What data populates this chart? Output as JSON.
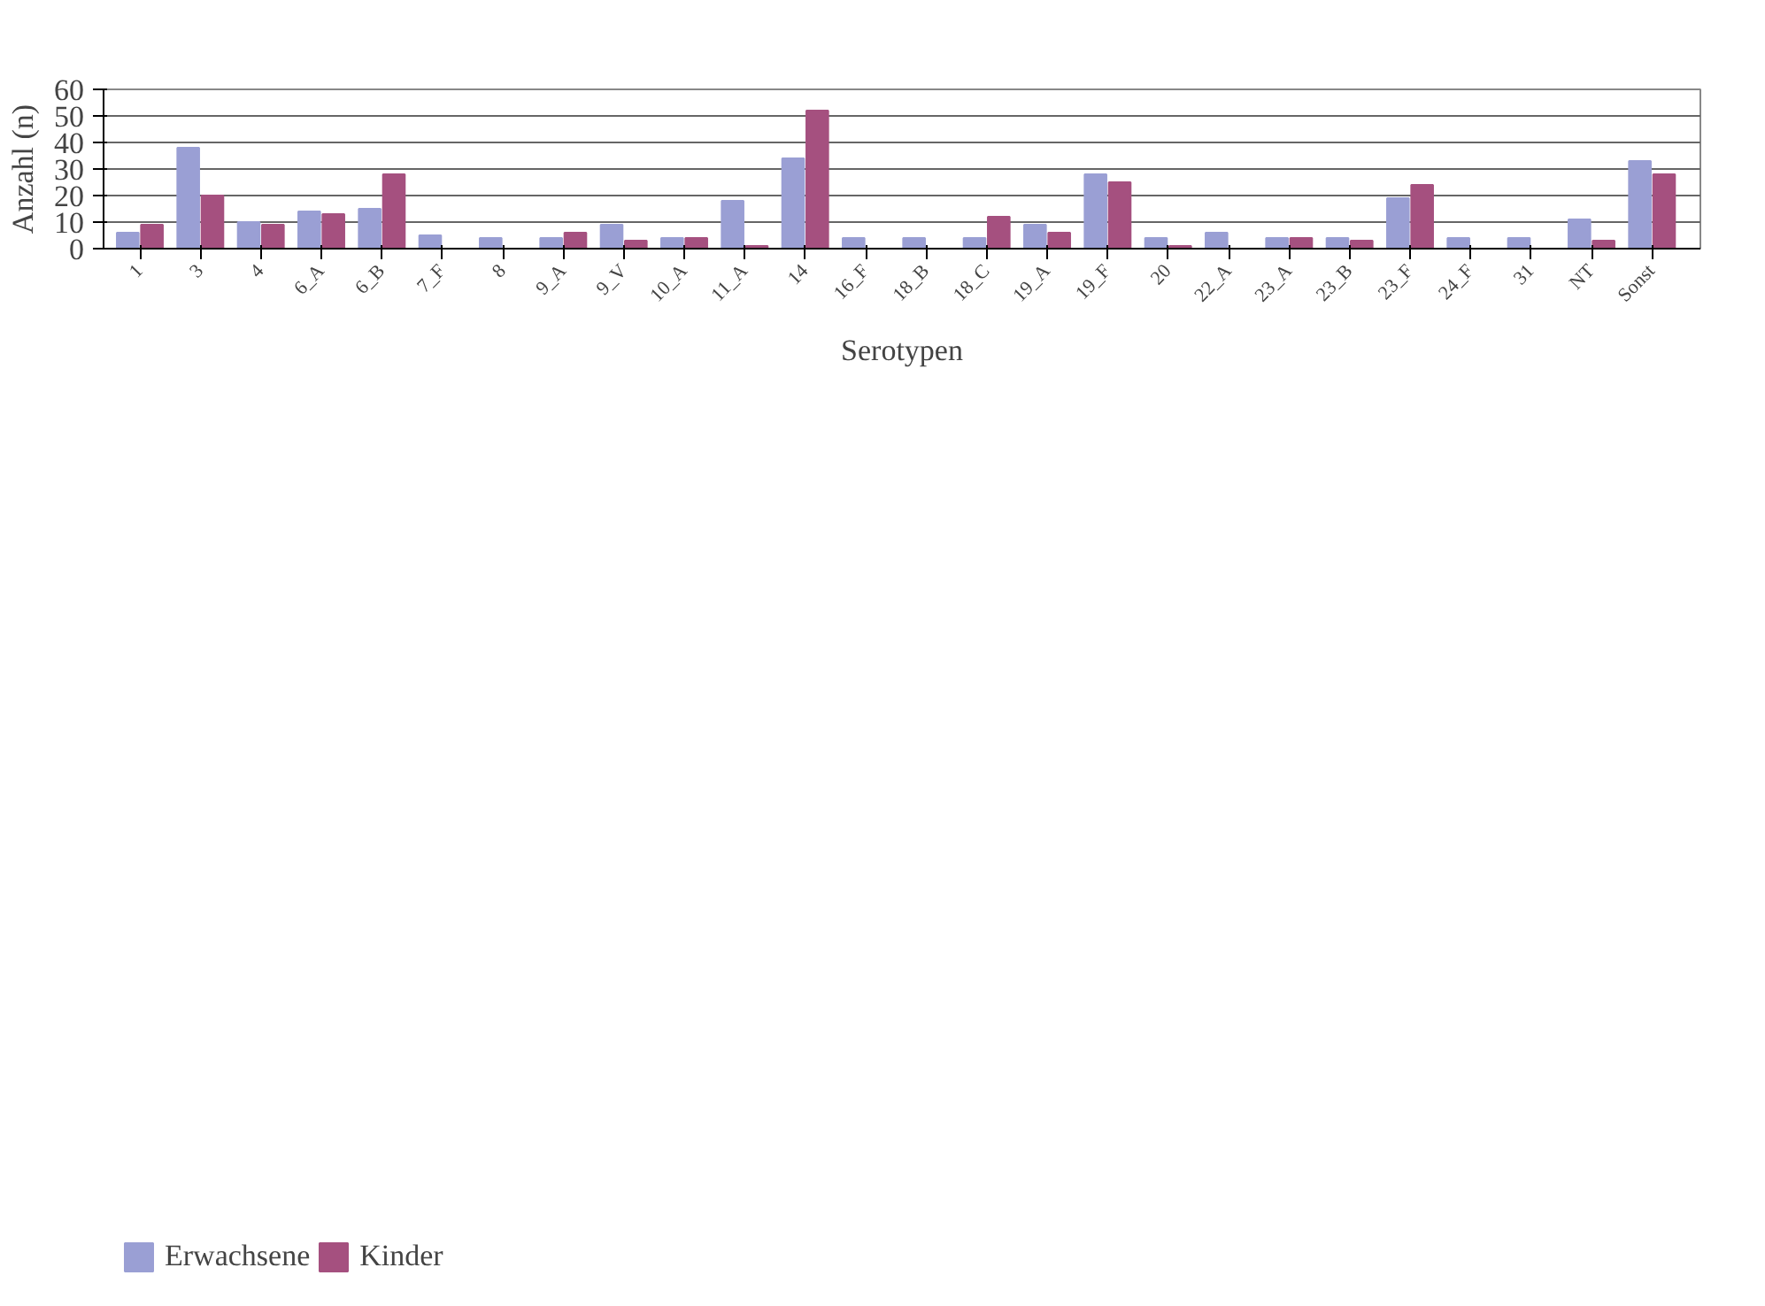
{
  "chart_data": {
    "type": "bar",
    "xlabel": "Serotypen",
    "ylabel": "Anzahl (n)",
    "categories": [
      "1",
      "3",
      "4",
      "6_A",
      "6_B",
      "7_F",
      "8",
      "9_A",
      "9_V",
      "10_A",
      "11_A",
      "14",
      "16_F",
      "18_B",
      "18_C",
      "19_A",
      "19_F",
      "20",
      "22_A",
      "23_A",
      "23_B",
      "23_F",
      "24_F",
      "31",
      "NT",
      "Sonst"
    ],
    "series": [
      {
        "name": "Erwachsene",
        "color": "#9a9fd4",
        "values": [
          6,
          38,
          10,
          14,
          15,
          5,
          4,
          4,
          9,
          4,
          18,
          34,
          4,
          4,
          4,
          9,
          28,
          4,
          6,
          4,
          4,
          19,
          4,
          4,
          11,
          33
        ]
      },
      {
        "name": "Kinder",
        "color": "#a5507f",
        "values": [
          9,
          20,
          9,
          13,
          28,
          0,
          0,
          6,
          3,
          4,
          1,
          52,
          0,
          0,
          12,
          6,
          25,
          1,
          0,
          4,
          3,
          24,
          0,
          0,
          3,
          28
        ]
      }
    ],
    "ylim": [
      0,
      60
    ],
    "yticks": [
      0,
      10,
      20,
      30,
      40,
      50,
      60
    ],
    "grid": "y",
    "legend": "bottom left"
  }
}
